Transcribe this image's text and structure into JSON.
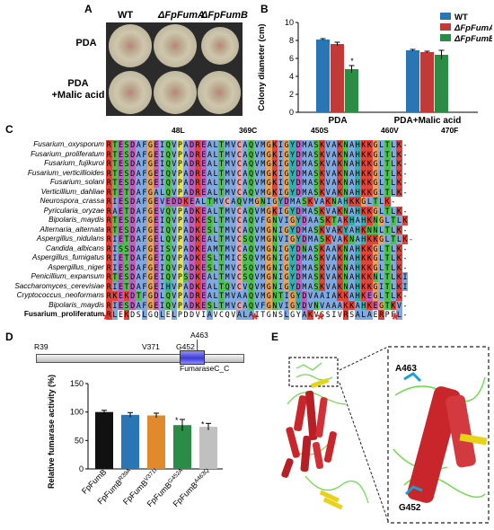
{
  "panels": {
    "a": "A",
    "b": "B",
    "c": "C",
    "d": "D",
    "e": "E"
  },
  "panel_a": {
    "columns": [
      "WT",
      "ΔFpFumA",
      "ΔFpFumB"
    ],
    "rows": [
      "PDA",
      "PDA\n+Malic acid"
    ]
  },
  "panel_b": {
    "legend": [
      "WT",
      "ΔFpFumA",
      "ΔFpFumB"
    ],
    "ylabel": "Colony diameter (cm)",
    "significance": "*"
  },
  "panel_c": {
    "positions": [
      "48L",
      "369C",
      "450S",
      "460V",
      "470F"
    ],
    "species": [
      "Fusarium_oxysporum",
      "Fusarium_proliferatum",
      "Fusarium_fujikuroi",
      "Fusarium_verticillioides",
      "Fusarium_solani",
      "Verticillium_dahliae",
      "Neurospora_crassa",
      "Pyricularia_oryzae",
      "Bipolaris_maydis",
      "Alternaria_alternata",
      "Aspergillus_nidulans",
      "Candida_albicans",
      "Aspergillus_fumigatus",
      "Aspergillus_niger",
      "Penicillium_expansum",
      "Saccharomyces_cerevisiae",
      "Cryptococcus_neoformans",
      "Bipolaris_maydis",
      "Fusarium_proliferatum"
    ],
    "sequences": [
      "RTESDAFGEIQVPADREALTMVCAQVMGKIGYDMASKVAKNAHKKGLTLK-",
      "RTESDAFGEIQVPADREALTMVCAQVMGKIGYDMASKVAKNAHKKGLTLK-",
      "RTESDAFGEIQVPADREALTMVCAQVMGKIGYDMASKVAKNAHKKGLTLK-",
      "RTESDAFGEIQVPADREALTMVCAQVMGKIGYDMASKVAKNAHKKGLTLK-",
      "RTESDAFGEIQVPADREALTMVCAQVMGKIGYDMASKVAKNAHKKGLTLK-",
      "RTETDAFGALQVPADREALTMVCAQVMGKIGYDMASKVAKNAHKKGLTLK-",
      "RIESDAFGEVEDDKEALTMVCAQVMGNIGYDMASKVAKNAHKKGLTLK-",
      "RAETDAFGEVQVPADKEALTMVCAQVMGKIGYDMASKVAKNAHKKGLTLK-",
      "RTESDAFGEIQVPADKESLTMVCAQVFGNVIGYDAASKTAKHAHKNGLTLK",
      "RTESDAFGEIQVPADKESLTMVCAQVMGNIGYDMASKVAKYAHKNNLTLK-",
      "RIETDAFGELQVPADKEALTMVCSQVMGNVIGYDMASKVAKNAHKKGLTLK-",
      "RISSDAFGEISVPADKEAMTMVCAQVMGNIGYDNASKAAKNAHKKGLTLK-",
      "RIETDAFGEIQVPADKESLTMICSQVMGNIGYDMASKVAKNAHKKGLTLK-",
      "RIESDAFGEIQVPADKESLTMVCSQVMGNIGYDMASKVAKNAHKKGLTLK-",
      "RTESDAFGEIQVPSDKEALTMVCSQVMGNIGYDMASKVAKNAHKKNLTLKI",
      "RIETDAFGEIHVPADKEALTQVCVQVMGNIGYDMASKVAKNAHKKGITLKI",
      "RKEKDTFGDLQVPADREALTMVAAQVMGNTIGYDVAAIAKKAHKEGLTLK-",
      "RIESDAFGEIQVPADKESLTMVCAQVFGNVIGYDVNVAAAKKAHKEGTKV-",
      "RLEKDSLGQLELPDDVIAVCQVALAITGNSLGYAKVSSIVRSALAERPFL-"
    ],
    "bottom_label_bold": "Fusarium_proliferatum",
    "marks": "* * * *"
  },
  "panel_d": {
    "domain_name": "FumaraseC_C",
    "sites": [
      "R39",
      "V371",
      "G452",
      "A463"
    ],
    "ylabel": "Relative fumarase activity (%)",
    "significance": "*"
  },
  "panel_e": {
    "site_labels": [
      "A463",
      "G452"
    ]
  },
  "colors": {
    "wt": "#2a76b5",
    "fumA": "#c23a37",
    "fumB": "#2a8c45",
    "d_fumB": "#111111",
    "d_r39a": "#2a76b5",
    "d_v371i": "#e08a2c",
    "d_g452a": "#2a8c45",
    "d_a463g": "#c0c0c0",
    "star": "#e8241c"
  },
  "chart_data": [
    {
      "type": "bar",
      "panel": "B",
      "categories": [
        "PDA",
        "PDA+Malic acid"
      ],
      "series": [
        {
          "name": "WT",
          "values": [
            8.1,
            6.9
          ],
          "errors": [
            0.1,
            0.1
          ]
        },
        {
          "name": "ΔFpFumA",
          "values": [
            7.6,
            6.7
          ],
          "errors": [
            0.2,
            0.1
          ]
        },
        {
          "name": "ΔFpFumB",
          "values": [
            4.8,
            6.4
          ],
          "errors": [
            0.4,
            0.5
          ]
        }
      ],
      "xlabel": "",
      "ylabel": "Colony diameter (cm)",
      "ylim": [
        0,
        10
      ],
      "yticks": [
        0,
        2,
        4,
        6,
        8,
        10
      ],
      "legend": "top-right"
    },
    {
      "type": "bar",
      "panel": "D",
      "categories": [
        "FpFumB",
        "FpFumB R39A",
        "FpFumB V371I",
        "FpFumB G452A",
        "FpFumB A463Q"
      ],
      "category_parts": [
        [
          "FpFumB",
          ""
        ],
        [
          "FpFumB",
          "R39A"
        ],
        [
          "FpFumB",
          "V371I"
        ],
        [
          "FpFumB",
          "G452A"
        ],
        [
          "FpFumB",
          "A463Q"
        ]
      ],
      "values": [
        100,
        95,
        94,
        77,
        74
      ],
      "errors": [
        3,
        4,
        4,
        10,
        6
      ],
      "starred": [
        false,
        false,
        false,
        true,
        true
      ],
      "xlabel": "",
      "ylabel": "Relative fumarase activity (%)",
      "ylim": [
        0,
        150
      ],
      "yticks": [
        0,
        50,
        100,
        150
      ]
    }
  ]
}
